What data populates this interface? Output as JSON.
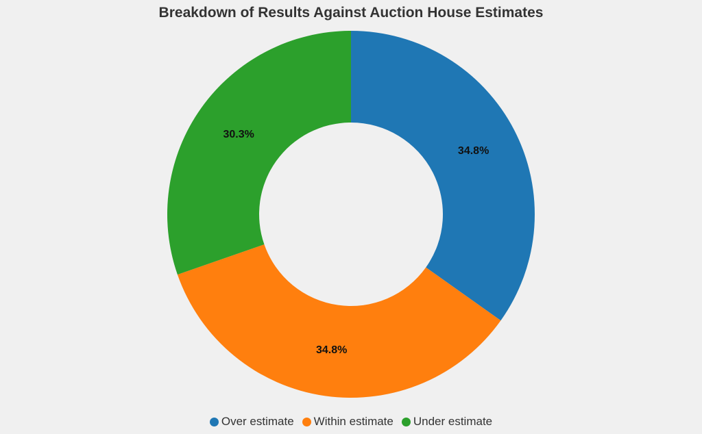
{
  "chart_data": {
    "type": "donut",
    "title": "Breakdown of Results Against Auction House Estimates",
    "categories": [
      "Over estimate",
      "Within estimate",
      "Under estimate"
    ],
    "values": [
      34.8,
      34.8,
      30.3
    ],
    "value_labels": [
      "34.8%",
      "34.8%",
      "30.3%"
    ],
    "colors": [
      "#1f77b4",
      "#ff7f0e",
      "#2ca02c"
    ],
    "legend": "bottom"
  }
}
